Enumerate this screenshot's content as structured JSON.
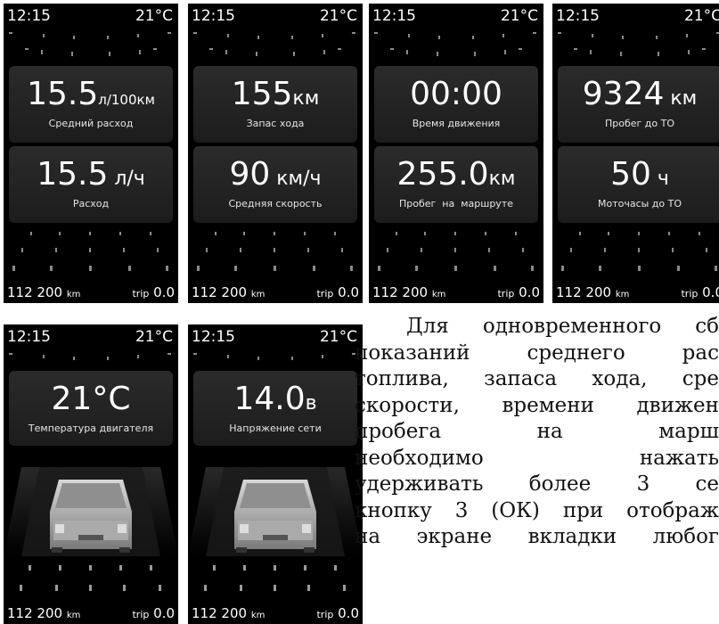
{
  "status": {
    "time": "12:15",
    "temp": "21°C"
  },
  "odometer": {
    "value": "112 200",
    "unit": "km",
    "trip_label": "trip",
    "trip_value": "0.0"
  },
  "screens": [
    {
      "cards": [
        {
          "value": "15.5",
          "unit": "л/100км",
          "label": "Средний расход"
        },
        {
          "value": "15.5",
          "unit": " л/ч",
          "label": "Расход"
        }
      ]
    },
    {
      "cards": [
        {
          "value": "155",
          "unit": "км",
          "label": "Запас хода"
        },
        {
          "value": "90",
          "unit": " км/ч",
          "label": "Средняя скорость"
        }
      ]
    },
    {
      "cards": [
        {
          "value": "00:00",
          "unit": "",
          "label": "Время движения"
        },
        {
          "value": "255.0",
          "unit": "км",
          "label": "Пробег  на  маршруте"
        }
      ]
    },
    {
      "cards": [
        {
          "value": "9324",
          "unit": " км",
          "label": "Пробег до ТО"
        },
        {
          "value": "50",
          "unit": " ч",
          "label": "Моточасы до ТО"
        }
      ]
    },
    {
      "cards": [
        {
          "value": "21°C",
          "unit": "",
          "label": "Температура двигателя"
        }
      ]
    },
    {
      "cards": [
        {
          "value": "14.0",
          "unit": "в",
          "label": "Напряжение сети"
        }
      ]
    }
  ],
  "paragraph": {
    "lines": [
      "Для одновременного сб",
      "показаний среднего рас",
      "топлива, запаса хода, сре",
      "скорости, времени движен",
      "пробега на марш",
      "необходимо нажать",
      "удерживать более 3 се",
      "кнопку 3 (ОК) при отображ",
      "на экране вкладки любог"
    ]
  }
}
